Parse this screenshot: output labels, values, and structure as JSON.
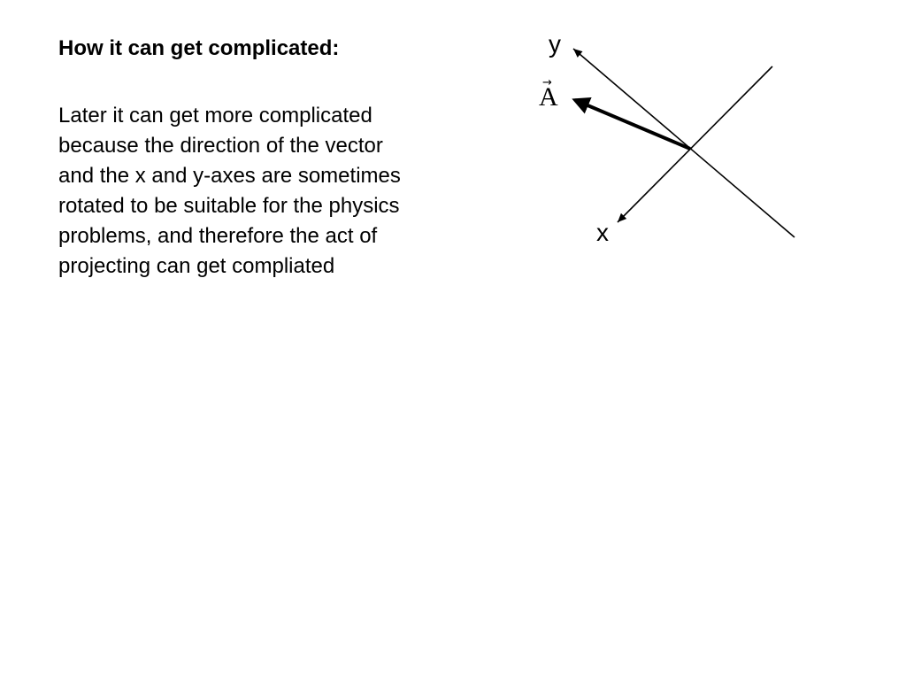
{
  "slide": {
    "title": "How it can get complicated:",
    "body_lines": [
      "Later it can get more complicated",
      "because the direction of the vector",
      "and the x and y-axes are sometimes",
      "rotated to be suitable for the physics",
      "problems, and therefore the act of",
      "projecting can get compliated"
    ]
  },
  "diagram": {
    "x_axis_label": "x",
    "y_axis_label": "y",
    "vector_label": "A",
    "vector_arrow_glyph": "→",
    "line_color": "#000000"
  }
}
